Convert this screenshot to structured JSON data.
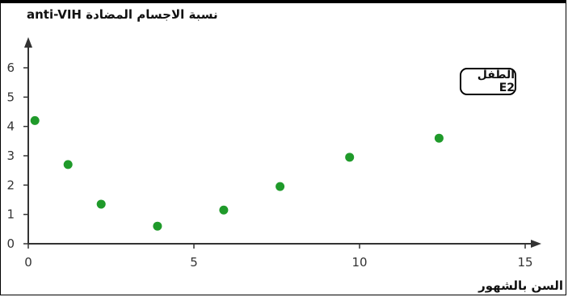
{
  "chart_data": {
    "type": "scatter",
    "ylabel": "نسبة الاجسام المضادة anti-VIH",
    "xlabel": "السن بالشهور",
    "annotation": "الطفل E2",
    "x": [
      0.2,
      1.2,
      2.2,
      3.9,
      5.9,
      7.6,
      9.7,
      12.4
    ],
    "y": [
      4.2,
      2.7,
      1.35,
      0.6,
      1.15,
      1.95,
      2.95,
      3.6
    ],
    "xlim": [
      0,
      15
    ],
    "ylim": [
      0,
      6
    ],
    "xticks": [
      0,
      5,
      10,
      15
    ],
    "yticks": [
      0,
      1,
      2,
      3,
      4,
      5,
      6
    ],
    "grid": false,
    "marker_color": "#1f9a2a",
    "axis_color": "#333333"
  }
}
